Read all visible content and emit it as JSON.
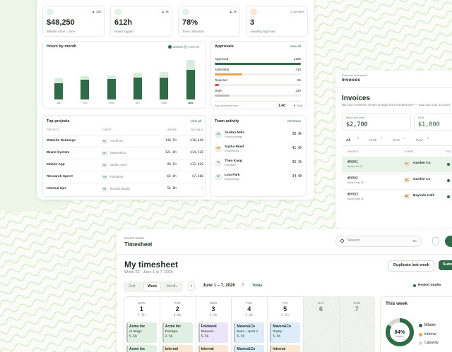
{
  "dashboard": {
    "stats": [
      {
        "badge": "▲ 14k",
        "value": "$48,250",
        "label": "Billable value · June"
      },
      {
        "badge": "▲ 3k",
        "value": "612h",
        "label": "Hours logged"
      },
      {
        "badge": "▲ 3k",
        "value": "78%",
        "label": "Team utilization"
      },
      {
        "badge": "2 overdue",
        "value": "3",
        "label": "Awaiting approval"
      }
    ],
    "hours_chart": {
      "type": "bar",
      "title": "Hours by month",
      "categories": [
        "Jan",
        "Feb",
        "Mar",
        "Apr",
        "May",
        "Jun"
      ],
      "series": [
        {
          "name": "Billable",
          "color": "#2f6b46",
          "values": [
            52,
            62,
            64,
            68,
            70,
            94
          ]
        },
        {
          "name": "Internal",
          "color": "#d9ecdc",
          "values": [
            14,
            12,
            12,
            16,
            16,
            30
          ]
        }
      ]
    },
    "approvals": {
      "title": "Approvals",
      "link": "View all",
      "items": [
        {
          "name": "Approved",
          "hours": {
            "value": 128,
            "label": "128h"
          },
          "color": "#2f6b46"
        },
        {
          "name": "Submitted",
          "hours": {
            "value": 41,
            "label": "41h"
          },
          "color": "#e8a44a"
        },
        {
          "name": "Rejected",
          "hours": {
            "value": 6,
            "label": "6h"
          },
          "color": "#d9534f"
        },
        {
          "name": "Draft",
          "hours": {
            "value": 22,
            "label": "22h"
          },
          "color": "#b9beb9"
        }
      ],
      "avg_label": "Avg. approval time",
      "avg_value": "1.4d",
      "avg_delta": "▼ 0.4d"
    },
    "projects": {
      "title": "Top projects",
      "link": "View all",
      "columns": [
        "PROJECT",
        "CLIENT",
        "HOURS",
        "BILLABLE"
      ],
      "rows": [
        {
          "project": "Website Redesign",
          "initials": "AC",
          "client": "Acme Inc",
          "hours": "148.5h",
          "billable": "$18,440"
        },
        {
          "project": "Brand System",
          "initials": "MC",
          "client": "Maven&Co",
          "hours": "121.0h",
          "billable": "$14,520"
        },
        {
          "project": "Mobile App",
          "initials": "SA",
          "client": "Studio Atom",
          "hours": "98.5h",
          "billable": "$11,820"
        },
        {
          "project": "Research Sprint",
          "initials": "FW",
          "client": "Foldwork",
          "hours": "64.0h",
          "billable": "$7,680"
        },
        {
          "project": "Internal Ops",
          "initials": "RS",
          "client": "Rocket Studio",
          "hours": "56.0h",
          "billable": "—"
        }
      ]
    },
    "team": {
      "title": "Team activity",
      "link": "Members",
      "members": [
        {
          "initials": "JM",
          "name": "Jordan Mills",
          "role": "Product design",
          "hours": "38.0h"
        },
        {
          "initials": "SR",
          "name": "Sasha Reed",
          "role": "Engineering",
          "hours": "41.0h"
        },
        {
          "initials": "TK",
          "name": "Theo Kang",
          "role": "Research",
          "hours": "36.5h"
        },
        {
          "initials": "LP",
          "name": "Lina Park",
          "role": "Engineering",
          "hours": "34.0h"
        }
      ]
    }
  },
  "invoices": {
    "workspace": "Personal workspace",
    "nav_title": "Invoices",
    "heading": "Invoices",
    "description": "Bill your freelance clients straight from tracked time — paid into your account",
    "billed_label": "Billed this year",
    "billed_value": "$2,700",
    "paid_label": "Paid",
    "paid_value": "$1,800",
    "tabs": [
      {
        "name": "All",
        "count": "3"
      },
      {
        "name": "Draft",
        "count": "0"
      },
      {
        "name": "Sent",
        "count": "1"
      },
      {
        "name": "Paid",
        "count": "2"
      }
    ],
    "columns": [
      "INVOICE",
      "CLIENT",
      "STA"
    ],
    "rows": [
      {
        "number": "#0001",
        "sub": "Issued Jun 27",
        "initials": "GC",
        "client": "Garden Co"
      },
      {
        "number": "#0002",
        "sub": "Issued May 28",
        "initials": "GC",
        "client": "Garden Co"
      },
      {
        "number": "#0003",
        "sub": "Issued May 12",
        "initials": "BC",
        "client": "Bayside Café"
      }
    ]
  },
  "timesheet": {
    "workspace": "Rocket Studio",
    "nav_title": "Timesheet",
    "search": "Search",
    "shortcut": "⌘K",
    "heading": "My timesheet",
    "subheading": "Week 23 · June 1 to 7, 2026",
    "duplicate_button": "Duplicate last week",
    "submit_button": "Submit",
    "views": [
      "Grid",
      "Week",
      "Month"
    ],
    "prev": "‹",
    "range": "June 1 – 7, 2026",
    "next": "›",
    "today": "Today",
    "team_filter": "Rocket Studio",
    "days": [
      {
        "name": "MON",
        "date": "1",
        "hours": "7.5h",
        "entries": [
          {
            "client": "Acme Inc",
            "task": "UI design",
            "hours": "5.5h",
            "color": "#dff0e3"
          },
          {
            "client": "Acme Inc",
            "color": "#dff0e3"
          }
        ]
      },
      {
        "name": "TUE",
        "date": "2",
        "hours": "8.0h",
        "entries": [
          {
            "client": "Acme Inc",
            "task": "Prototype",
            "hours": "2.5h",
            "color": "#dff0e3"
          },
          {
            "client": "Internal",
            "color": "#fbe8d4"
          }
        ]
      },
      {
        "name": "WED",
        "date": "3",
        "hours": "5.5h",
        "entries": [
          {
            "client": "Foldwork",
            "task": "Research",
            "hours": "5.5h",
            "color": "#ece4f8"
          },
          {
            "client": "Internal",
            "color": "#fbe8d4"
          }
        ]
      },
      {
        "name": "THU",
        "date": "4",
        "hours": "5.5h",
        "entries": [
          {
            "client": "Maven&Co",
            "task": "Build — sprint 4",
            "hours": "5.5h",
            "color": "#dcecf8"
          },
          {
            "client": "Maven&Co",
            "color": "#dcecf8"
          }
        ]
      },
      {
        "name": "FRI",
        "date": "5",
        "hours": "5.5h",
        "entries": [
          {
            "client": "Maven&Co",
            "task": "Deploy",
            "hours": "5.5h",
            "color": "#dcecf8"
          },
          {
            "client": "Internal",
            "color": "#fbe8d4"
          }
        ]
      },
      {
        "name": "SAT",
        "date": "6",
        "entries": []
      },
      {
        "name": "SUN",
        "date": "7",
        "entries": []
      }
    ],
    "this_week": {
      "title": "This week",
      "billable": {
        "value": 84,
        "label": "84%"
      },
      "caption": "billable",
      "legend": [
        {
          "name": "Billable",
          "color": "#2f6b46"
        },
        {
          "name": "Internal",
          "color": "#e8a44a"
        },
        {
          "name": "Capacity",
          "color": "#d5d9d5"
        }
      ]
    }
  }
}
